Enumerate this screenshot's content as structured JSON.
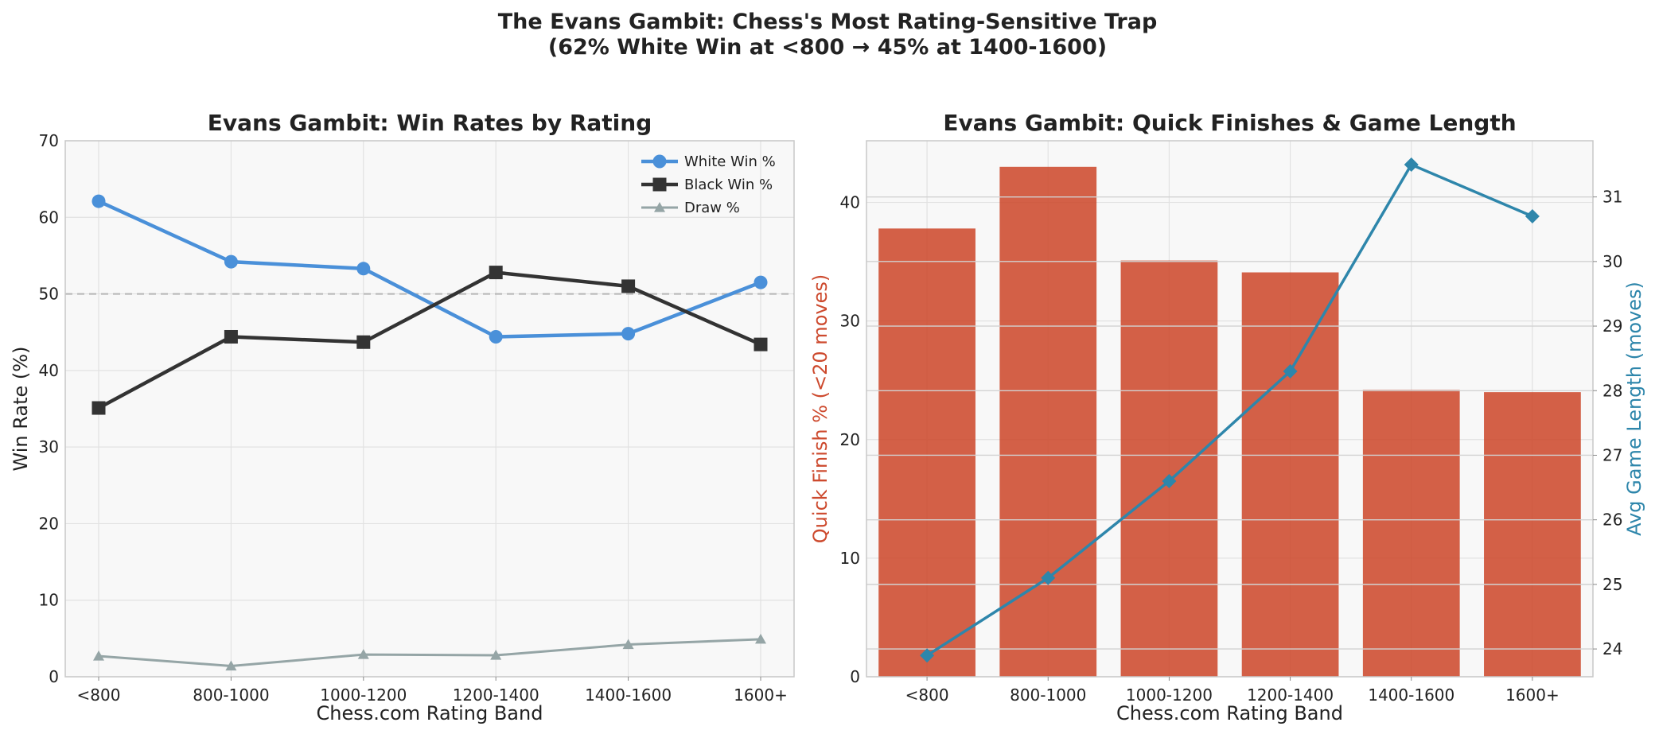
{
  "suptitle": {
    "line1": "The Evans Gambit: Chess's Most Rating-Sensitive Trap",
    "line2": "(62% White Win at <800 → 45% at 1400-1600)"
  },
  "chart_data": [
    {
      "type": "line",
      "title": "Evans Gambit: Win Rates by Rating",
      "xlabel": "Chess.com Rating Band",
      "ylabel": "Win Rate (%)",
      "categories": [
        "<800",
        "800-1000",
        "1000-1200",
        "1200-1400",
        "1400-1600",
        "1600+"
      ],
      "ylim": [
        0,
        70
      ],
      "yticks": [
        0,
        10,
        20,
        30,
        40,
        50,
        60,
        70
      ],
      "reference_line": 50,
      "grid": true,
      "legend_position": "top-right",
      "series": [
        {
          "name": "White Win %",
          "values": [
            62.1,
            54.2,
            53.3,
            44.4,
            44.8,
            51.5
          ],
          "color": "#4a90d9",
          "marker": "circle"
        },
        {
          "name": "Black Win %",
          "values": [
            35.1,
            44.4,
            43.7,
            52.8,
            51.0,
            43.4
          ],
          "color": "#333333",
          "marker": "square"
        },
        {
          "name": "Draw %",
          "values": [
            2.7,
            1.4,
            2.9,
            2.8,
            4.2,
            4.9
          ],
          "color": "#95a5a6",
          "marker": "triangle"
        }
      ]
    },
    {
      "type": "bar",
      "title": "Evans Gambit: Quick Finishes & Game Length",
      "xlabel": "Chess.com Rating Band",
      "ylabel": "Quick Finish % (<20 moves)",
      "y2label": "Avg Game Length (moves)",
      "categories": [
        "<800",
        "800-1000",
        "1000-1200",
        "1200-1400",
        "1400-1600",
        "1600+"
      ],
      "ylim": [
        0,
        45.2
      ],
      "yticks": [
        0,
        10,
        20,
        30,
        40
      ],
      "y2lim": [
        23.57,
        31.87
      ],
      "y2ticks": [
        24,
        25,
        26,
        27,
        28,
        29,
        30,
        31
      ],
      "grid": true,
      "series": [
        {
          "name": "Quick Finish % (<20 moves)",
          "values": [
            37.8,
            43.0,
            35.1,
            34.1,
            24.2,
            24.0
          ],
          "color": "#cd4a2e",
          "axis": "left"
        },
        {
          "name": "Avg Game Length (moves)",
          "values": [
            23.9,
            25.1,
            26.6,
            28.3,
            31.5,
            30.7
          ],
          "color": "#2e86ab",
          "axis": "right",
          "marker": "diamond"
        }
      ]
    }
  ]
}
